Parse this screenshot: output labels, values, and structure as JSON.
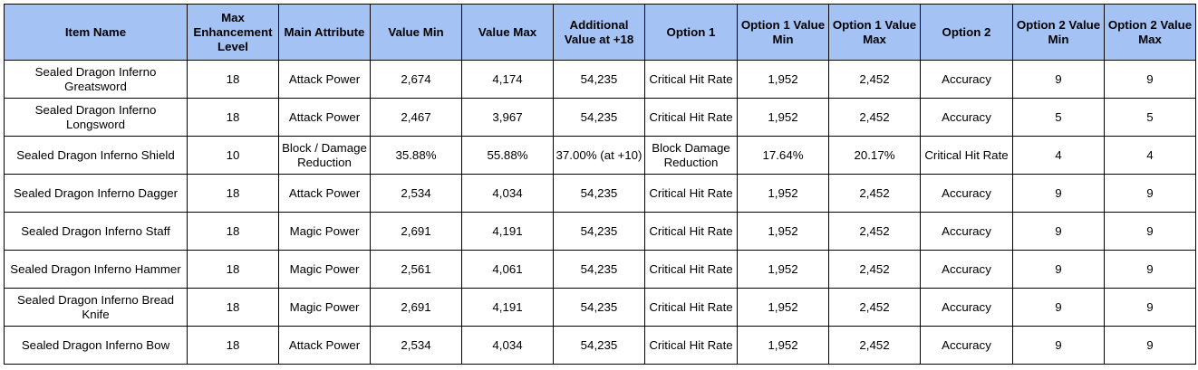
{
  "table": {
    "headers": [
      "Item Name",
      "Max Enhancement Level",
      "Main Attribute",
      "Value Min",
      "Value Max",
      "Additional Value at +18",
      "Option 1",
      "Option 1 Value Min",
      "Option 1 Value Max",
      "Option 2",
      "Option 2 Value Min",
      "Option 2 Value Max"
    ],
    "rows": [
      [
        "Sealed Dragon Inferno Greatsword",
        "18",
        "Attack Power",
        "2,674",
        "4,174",
        "54,235",
        "Critical Hit Rate",
        "1,952",
        "2,452",
        "Accuracy",
        "9",
        "9"
      ],
      [
        "Sealed Dragon Inferno Longsword",
        "18",
        "Attack Power",
        "2,467",
        "3,967",
        "54,235",
        "Critical Hit Rate",
        "1,952",
        "2,452",
        "Accuracy",
        "5",
        "5"
      ],
      [
        "Sealed Dragon Inferno Shield",
        "10",
        "Block / Damage Reduction",
        "35.88%",
        "55.88%",
        "37.00% (at +10)",
        "Block Damage Reduction",
        "17.64%",
        "20.17%",
        "Critical Hit Rate",
        "4",
        "4"
      ],
      [
        "Sealed Dragon Inferno Dagger",
        "18",
        "Attack Power",
        "2,534",
        "4,034",
        "54,235",
        "Critical Hit Rate",
        "1,952",
        "2,452",
        "Accuracy",
        "9",
        "9"
      ],
      [
        "Sealed Dragon Inferno Staff",
        "18",
        "Magic Power",
        "2,691",
        "4,191",
        "54,235",
        "Critical Hit Rate",
        "1,952",
        "2,452",
        "Accuracy",
        "9",
        "9"
      ],
      [
        "Sealed Dragon Inferno Hammer",
        "18",
        "Magic Power",
        "2,561",
        "4,061",
        "54,235",
        "Critical Hit Rate",
        "1,952",
        "2,452",
        "Accuracy",
        "9",
        "9"
      ],
      [
        "Sealed Dragon Inferno Bread Knife",
        "18",
        "Magic Power",
        "2,691",
        "4,191",
        "54,235",
        "Critical Hit Rate",
        "1,952",
        "2,452",
        "Accuracy",
        "9",
        "9"
      ],
      [
        "Sealed Dragon Inferno Bow",
        "18",
        "Attack Power",
        "2,534",
        "4,034",
        "54,235",
        "Critical Hit Rate",
        "1,952",
        "2,452",
        "Accuracy",
        "9",
        "9"
      ]
    ]
  },
  "colors": {
    "header_background": "#a4c2f4",
    "border": "#000000"
  }
}
